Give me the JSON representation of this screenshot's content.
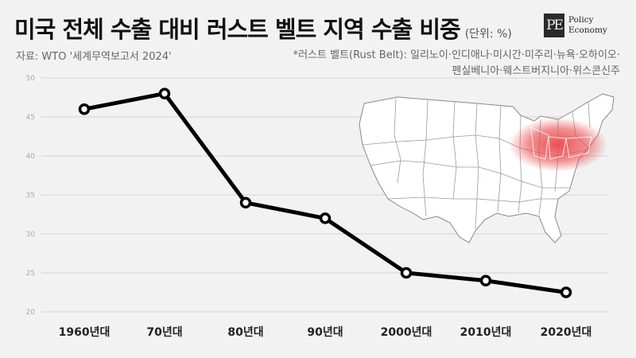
{
  "header": {
    "title": "미국 전체 수출 대비 러스트 벨트 지역 수출 비중",
    "unit": "(단위: %)",
    "source": "자료: WTO '세계무역보고서 2024'",
    "note_line1": "*러스트 벨트(Rust Belt): 일리노이·인디애나·미시간·미주리·뉴욕·오하이오·",
    "note_line2": "펜실베니아·웨스트버지니아·위스콘신주"
  },
  "logo": {
    "mark": "PE",
    "line1": "Policy",
    "line2": "Economy"
  },
  "colors": {
    "line": "#000000",
    "background": "#f2f2f2",
    "grid": "#d4d4d4",
    "highlight": "#e8474a",
    "map_land": "#ffffff",
    "map_border": "#888888"
  },
  "chart_data": {
    "type": "line",
    "categories": [
      "1960년대",
      "70년대",
      "80년대",
      "90년대",
      "2000년대",
      "2010년대",
      "2020년대"
    ],
    "values": [
      46,
      48,
      34,
      32,
      25,
      24,
      22.5
    ],
    "ylim": [
      20,
      50
    ],
    "yticks": [
      20,
      25,
      30,
      35,
      40,
      45,
      50
    ],
    "grid": true,
    "unit": "%"
  }
}
